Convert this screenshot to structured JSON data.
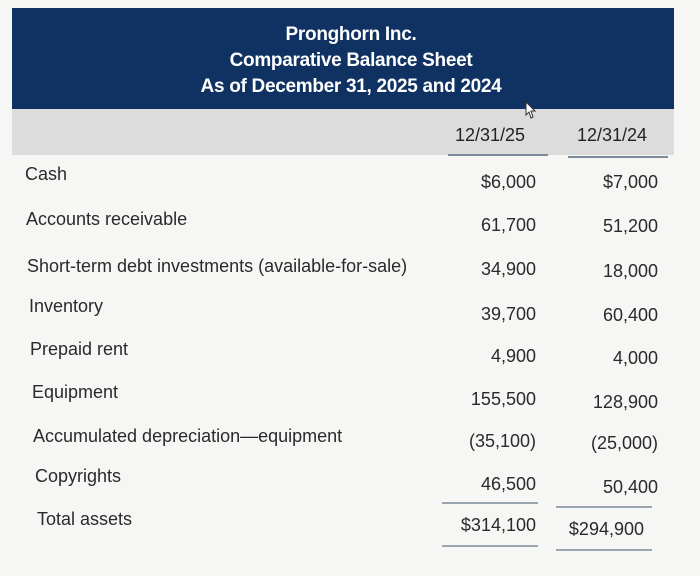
{
  "header": {
    "company": "Pronghorn Inc.",
    "statement": "Comparative Balance Sheet",
    "period": "As of December 31, 2025 and 2024"
  },
  "columns": [
    "12/31/25",
    "12/31/24"
  ],
  "rows": [
    {
      "label": "Cash",
      "y2025": "$6,000",
      "y2024": "$7,000"
    },
    {
      "label": "Accounts receivable",
      "y2025": "61,700",
      "y2024": "51,200"
    },
    {
      "label": "Short-term debt investments (available-for-sale)",
      "y2025": "34,900",
      "y2024": "18,000"
    },
    {
      "label": "Inventory",
      "y2025": "39,700",
      "y2024": "60,400"
    },
    {
      "label": "Prepaid rent",
      "y2025": "4,900",
      "y2024": "4,000"
    },
    {
      "label": "Equipment",
      "y2025": "155,500",
      "y2024": "128,900"
    },
    {
      "label": "Accumulated depreciation—equipment",
      "y2025": "(35,100)",
      "y2024": "(25,000)"
    },
    {
      "label": "Copyrights",
      "y2025": "46,500",
      "y2024": "50,400"
    },
    {
      "label": "Total assets",
      "y2025": "$314,100",
      "y2024": "$294,900"
    }
  ],
  "colors": {
    "header_bg": "#0f3262",
    "header_text": "#ffffff",
    "column_band": "#dcdcdc",
    "body_bg": "#f6f6f4"
  },
  "icons": {
    "cursor": "pointer-cursor-icon"
  }
}
